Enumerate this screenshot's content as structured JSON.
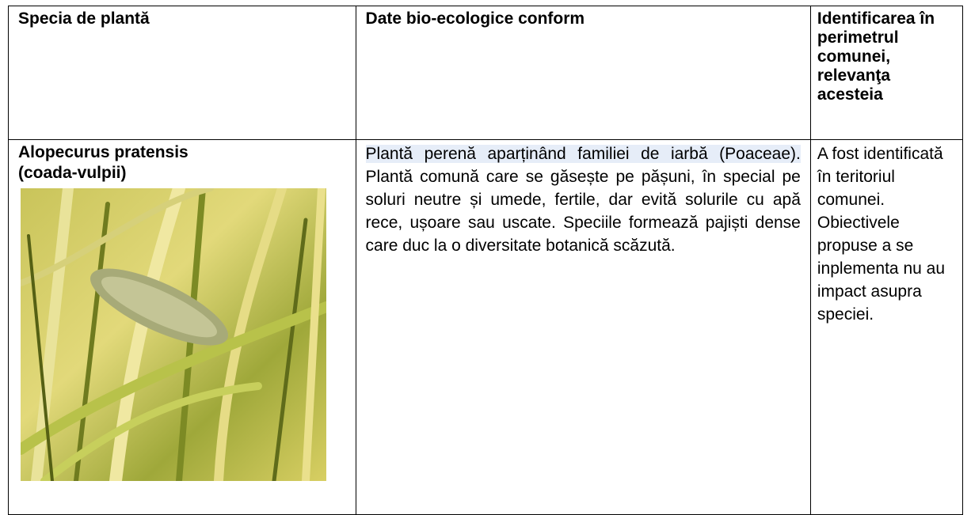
{
  "table": {
    "headers": [
      "Specia de plantă",
      "Date bio-ecologice conform",
      "Identificarea în perimetrul comunei, relevanţa acesteia"
    ],
    "rows": [
      {
        "species_name": "Alopecurus pratensis",
        "common_name": "(coada-vulpii)",
        "description_highlighted": "Plantă perenă aparținând familiei de iarbă (Poaceae).",
        "description": "Plantă comună care se găsește pe pășuni, în special pe soluri neutre și umede, fertile, dar evită solurile cu apă rece, ușoare sau uscate. Speciile formează pajiști dense care duc la o diversitate botanică scăzută.",
        "identification": "A fost identificată în teritoriul comunei. Obiectivele propuse a se inplementa nu au impact asupra speciei."
      }
    ]
  }
}
